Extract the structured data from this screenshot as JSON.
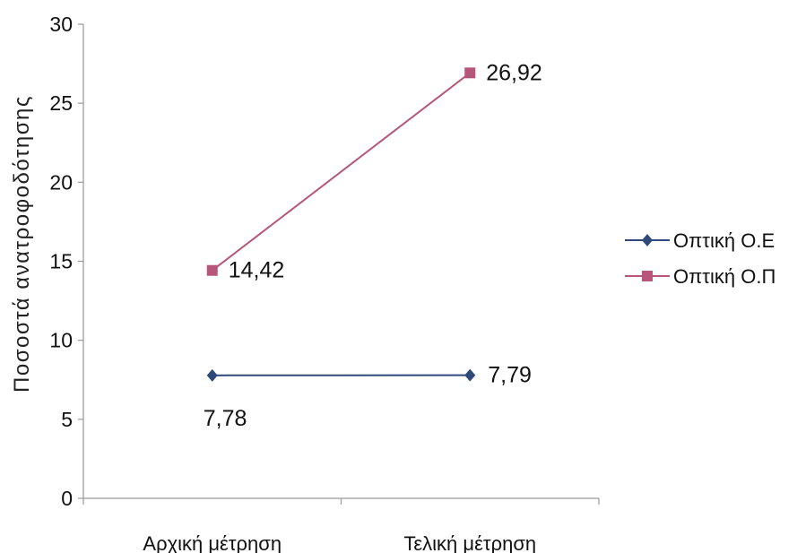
{
  "chart_data": {
    "type": "line",
    "title": "",
    "ylabel": "Ποσοστά ανατροφοδότησης",
    "xlabel": "",
    "categories": [
      "Αρχική μέτρηση",
      "Τελική μέτρηση"
    ],
    "ylim": [
      0,
      30
    ],
    "yticks": [
      0,
      5,
      10,
      15,
      20,
      25,
      30
    ],
    "grid": false,
    "legend_position": "right",
    "series": [
      {
        "name": "Οπτική Ο.Ε",
        "values": [
          7.78,
          7.79
        ],
        "labels": [
          "7,78",
          "7,79"
        ],
        "color": "#2f4a7a",
        "marker": "diamond"
      },
      {
        "name": "Οπτική Ο.Π",
        "values": [
          14.42,
          26.92
        ],
        "labels": [
          "14,42",
          "26,92"
        ],
        "color": "#b5567a",
        "marker": "square"
      }
    ]
  }
}
